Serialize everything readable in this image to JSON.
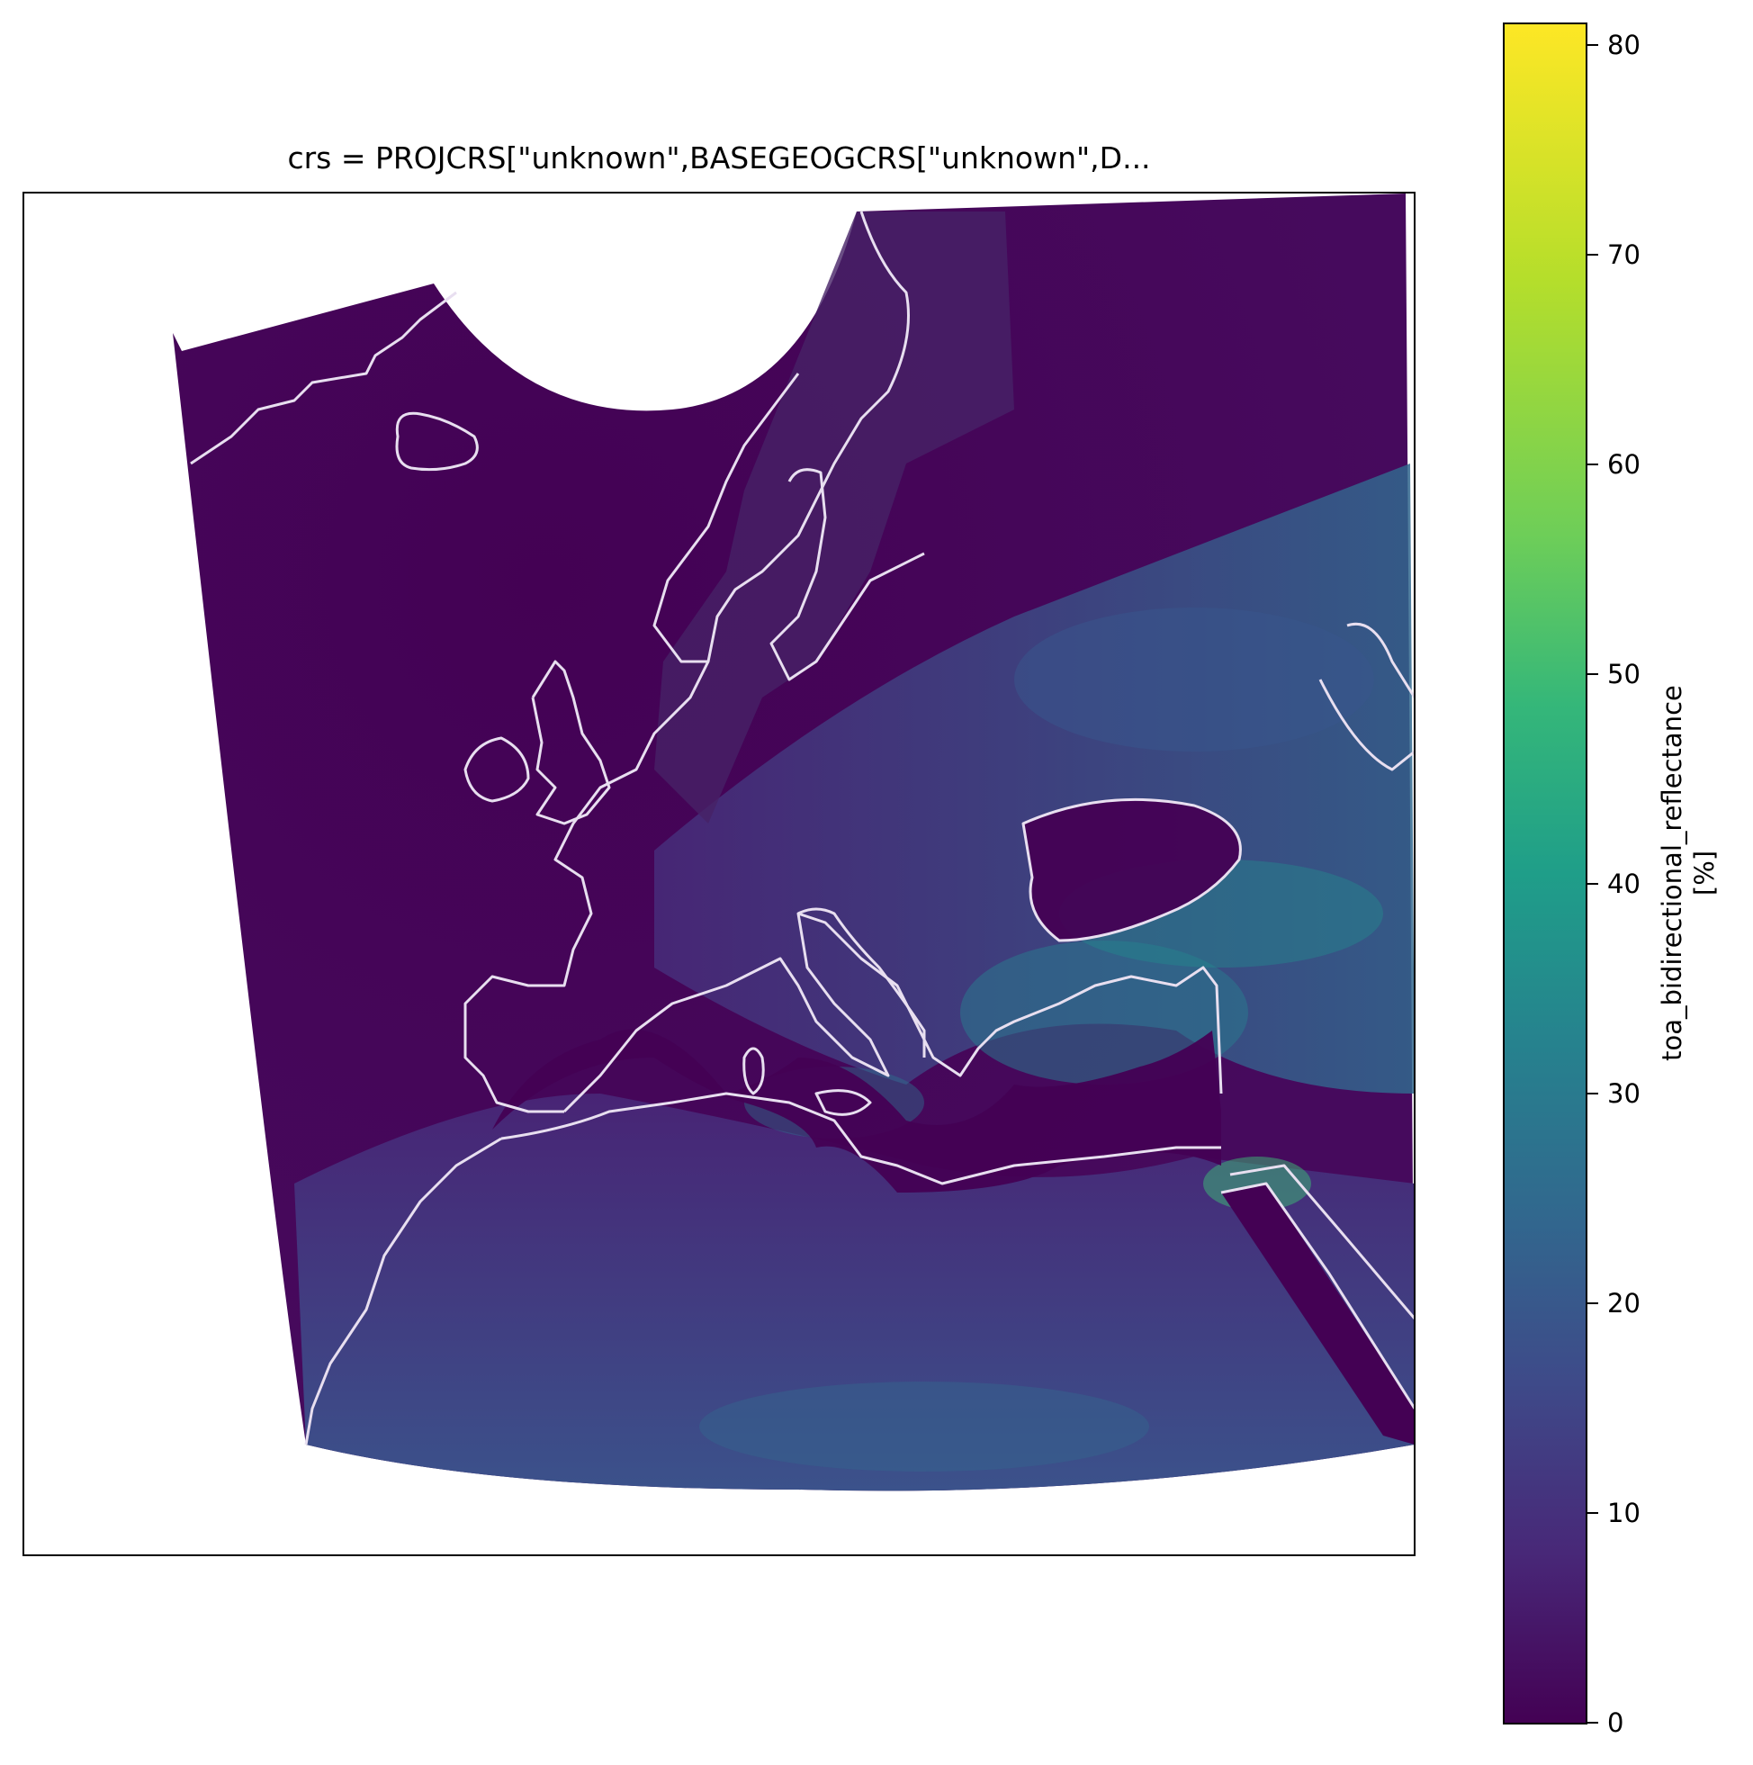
{
  "figure": {
    "title": "crs = PROJCRS[\"unknown\",BASEGEOGCRS[\"unknown\",D..."
  },
  "colorbar": {
    "label_line1": "toa_bidirectional_reflectance",
    "label_line2": "[%]",
    "min": 0,
    "max": 80.5,
    "ticks": [
      "0",
      "10",
      "20",
      "30",
      "40",
      "50",
      "60",
      "70",
      "80"
    ],
    "colormap": "viridis",
    "colors": [
      "#440154",
      "#482878",
      "#3e4a89",
      "#31688e",
      "#26828e",
      "#1f9e89",
      "#35b779",
      "#6ece58",
      "#b5de2b",
      "#fde725"
    ]
  },
  "map": {
    "variable": "toa_bidirectional_reflectance",
    "coastline_color": "#e8dff0",
    "region": "Europe, North Africa and Middle East"
  }
}
